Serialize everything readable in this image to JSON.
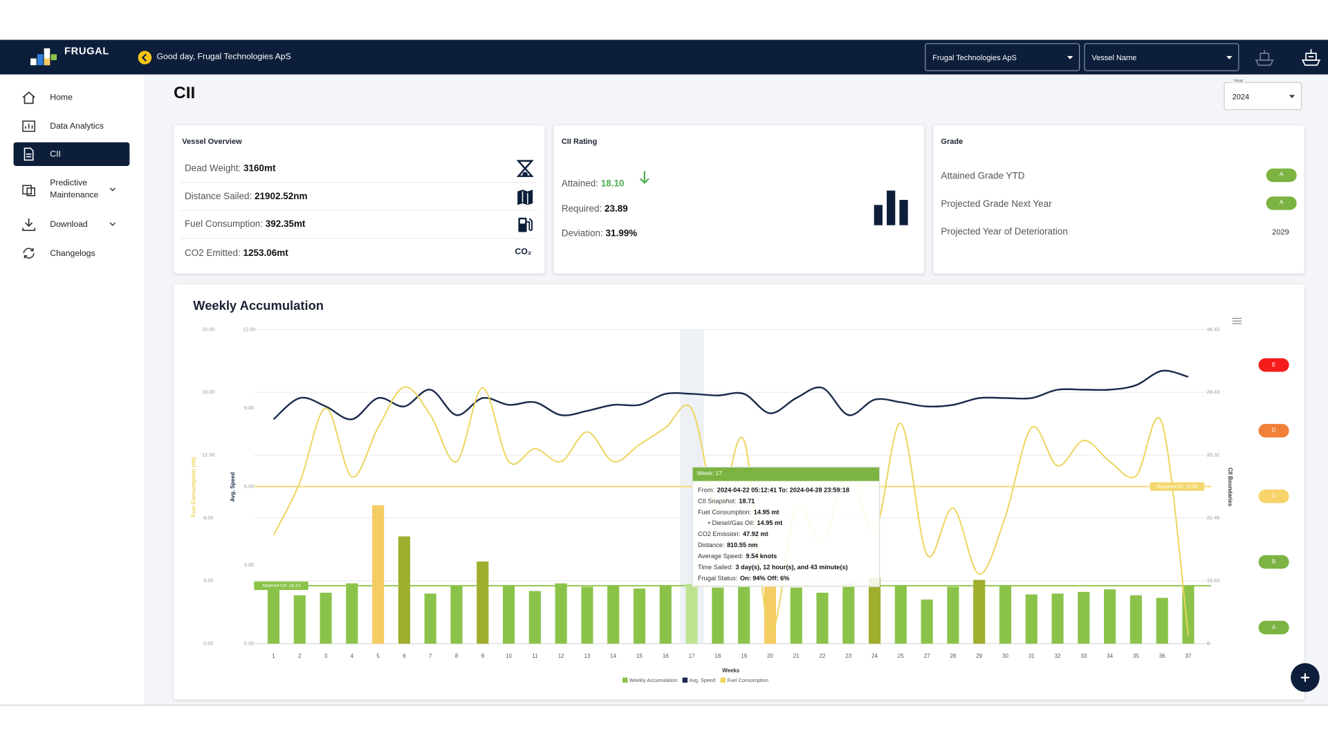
{
  "header": {
    "brand": "FRUGAL",
    "greeting": "Good day, Frugal Technologies ApS",
    "company_select": "Frugal Technologies ApS",
    "vessel_select": "Vessel Name"
  },
  "sidebar": {
    "items": [
      "Home",
      "Data Analytics",
      "CII",
      "Predictive Maintenance",
      "Download",
      "Changelogs"
    ]
  },
  "page": {
    "title": "CII",
    "year_label": "Year",
    "year": "2024"
  },
  "vessel_overview": {
    "title": "Vessel Overview",
    "rows": [
      {
        "label": "Dead Weight:",
        "value": "3160mt"
      },
      {
        "label": "Distance Sailed:",
        "value": "21902.52nm"
      },
      {
        "label": "Fuel Consumption:",
        "value": "392.35mt"
      },
      {
        "label": "CO2 Emitted:",
        "value": "1253.06mt",
        "icon": "CO₂"
      }
    ]
  },
  "cii_rating": {
    "title": "CII Rating",
    "rows": [
      {
        "label": "Attained:",
        "value": "18.10"
      },
      {
        "label": "Required:",
        "value": "23.89"
      },
      {
        "label": "Deviation:",
        "value": "31.99%"
      }
    ]
  },
  "grade": {
    "title": "Grade",
    "rows": [
      {
        "label": "Attained Grade YTD",
        "value": "A"
      },
      {
        "label": "Projected Grade Next Year",
        "value": "A"
      },
      {
        "label": "Projected Year of Deterioration",
        "value": "2029"
      }
    ]
  },
  "chart_data": {
    "type": "combo",
    "title": "Weekly Accumulation",
    "xlabel": "Weeks",
    "ylabel": "Fuel Consumption (mt)",
    "y3label": "Avg. Speed",
    "y2label": "CII Boundaries",
    "categories": [
      "1",
      "2",
      "3",
      "4",
      "5",
      "6",
      "7",
      "8",
      "9",
      "10",
      "11",
      "12",
      "13",
      "14",
      "15",
      "16",
      "17",
      "18",
      "19",
      "20",
      "21",
      "22",
      "23",
      "24",
      "25",
      "27",
      "28",
      "29",
      "30",
      "31",
      "32",
      "33",
      "34",
      "35",
      "36",
      "37"
    ],
    "ylim": [
      0,
      20
    ],
    "yticks": [
      {
        "value": 0,
        "label": "0.00"
      },
      {
        "value": 4,
        "label": "4.00"
      },
      {
        "value": 8,
        "label": "8.00"
      },
      {
        "value": 12,
        "label": "12.00"
      },
      {
        "value": 16,
        "label": "16.00"
      },
      {
        "value": 20,
        "label": "20.00"
      }
    ],
    "y3lim": [
      0,
      12
    ],
    "y3ticks": [
      {
        "value": 0,
        "label": "0.00"
      },
      {
        "value": 3,
        "label": "3.00"
      },
      {
        "value": 6,
        "label": "6.00"
      },
      {
        "value": 9,
        "label": "9.00"
      },
      {
        "value": 12,
        "label": "12.00"
      }
    ],
    "y2lim": [
      0,
      36.43
    ],
    "y2ticks": [
      0,
      19.63,
      22.46,
      25.32,
      28.43,
      36.43
    ],
    "y2_scale": "piecewise",
    "grid": true,
    "series": [
      {
        "name": "Weekly Accumulation",
        "type": "bar",
        "axis": "y2",
        "color": "#8bc34a",
        "colors": [
          "#8bc34a",
          "#8bc34a",
          "#8bc34a",
          "#8bc34a",
          "#f4cc62",
          "#9fae2e",
          "#8bc34a",
          "#8bc34a",
          "#9fae2e",
          "#8bc34a",
          "#8bc34a",
          "#8bc34a",
          "#8bc34a",
          "#8bc34a",
          "#8bc34a",
          "#8bc34a",
          "#bde38f",
          "#8bc34a",
          "#8bc34a",
          "#f4cc62",
          "#8bc34a",
          "#8bc34a",
          "#8bc34a",
          "#9fae2e",
          "#8bc34a",
          "#8bc34a",
          "#8bc34a",
          "#9fae2e",
          "#8bc34a",
          "#8bc34a",
          "#8bc34a",
          "#8bc34a",
          "#8bc34a",
          "#8bc34a",
          "#8bc34a",
          "#8bc34a"
        ],
        "values": [
          18.3,
          15.12,
          15.92,
          18.83,
          23.04,
          21.63,
          15.65,
          18.04,
          20.5,
          18.3,
          16.45,
          18.83,
          17.77,
          18.04,
          17.24,
          18.04,
          18.71,
          17.51,
          18.04,
          18.57,
          17.51,
          15.92,
          18.83,
          19.78,
          18.04,
          13.79,
          17.77,
          19.67,
          18.3,
          15.39,
          15.65,
          16.18,
          16.98,
          15.12,
          14.32,
          18.04
        ]
      },
      {
        "name": "Avg. Speed",
        "type": "line",
        "axis": "y3",
        "color": "#1b2b4b",
        "values": [
          8.57,
          9.38,
          9.06,
          8.57,
          9.38,
          9.06,
          9.7,
          8.73,
          9.38,
          9.12,
          9.22,
          8.73,
          8.89,
          9.12,
          9.12,
          9.54,
          9.54,
          9.48,
          9.54,
          8.8,
          9.38,
          9.77,
          8.73,
          9.32,
          9.22,
          9.06,
          9.12,
          9.38,
          9.38,
          9.38,
          9.7,
          9.7,
          9.7,
          9.87,
          10.42,
          10.19
        ]
      },
      {
        "name": "Fuel Consumption",
        "type": "line",
        "axis": "y",
        "color": "#ecd45a",
        "values": [
          6.9,
          10.24,
          14.99,
          10.62,
          13.75,
          16.33,
          14.56,
          11.59,
          16.28,
          11.59,
          12.4,
          11.59,
          13.48,
          11.59,
          12.67,
          13.75,
          14.95,
          8.63,
          12.94,
          0.81,
          8.63,
          6.47,
          11.05,
          7.12,
          14.02,
          5.66,
          8.63,
          4.42,
          8.09,
          13.75,
          11.32,
          12.94,
          11.59,
          10.67,
          14.02,
          0.54
        ]
      }
    ],
    "annotations": [
      {
        "label": "Attained CII: 18.10",
        "value": 18.1,
        "axis": "y2",
        "color": "#8bc34a"
      },
      {
        "label": "Required CII: 23.89",
        "value": 23.89,
        "axis": "y2",
        "color": "#f4d76e"
      }
    ],
    "boundary_grades": [
      "E",
      "D",
      "C",
      "B",
      "A"
    ],
    "boundary_colors": [
      "#f51c1c",
      "#f0803a",
      "#f7d36b",
      "#7cb342",
      "#7cb342"
    ],
    "tooltip": {
      "title": "Week: 17",
      "rows": [
        {
          "label": "From:",
          "value": "2024-04-22 05:12:41 To: 2024-04-28 23:59:18"
        },
        {
          "label": "CII Snapshot:",
          "value": "18.71"
        },
        {
          "label": "Fuel Consumption:",
          "value": "14.95 mt"
        },
        {
          "label": "• Diesel/Gas Oil:",
          "value": "14.95 mt"
        },
        {
          "label": "CO2 Emission:",
          "value": "47.92 mt"
        },
        {
          "label": "Distance:",
          "value": "810.55 nm"
        },
        {
          "label": "Average Speed:",
          "value": "9.54 knots"
        },
        {
          "label": "Time Sailed:",
          "value": "3 day(s), 12 hour(s), and 43 minute(s)"
        },
        {
          "label": "Frugal Status:",
          "value": "On: 94% Off: 6%"
        }
      ]
    }
  }
}
